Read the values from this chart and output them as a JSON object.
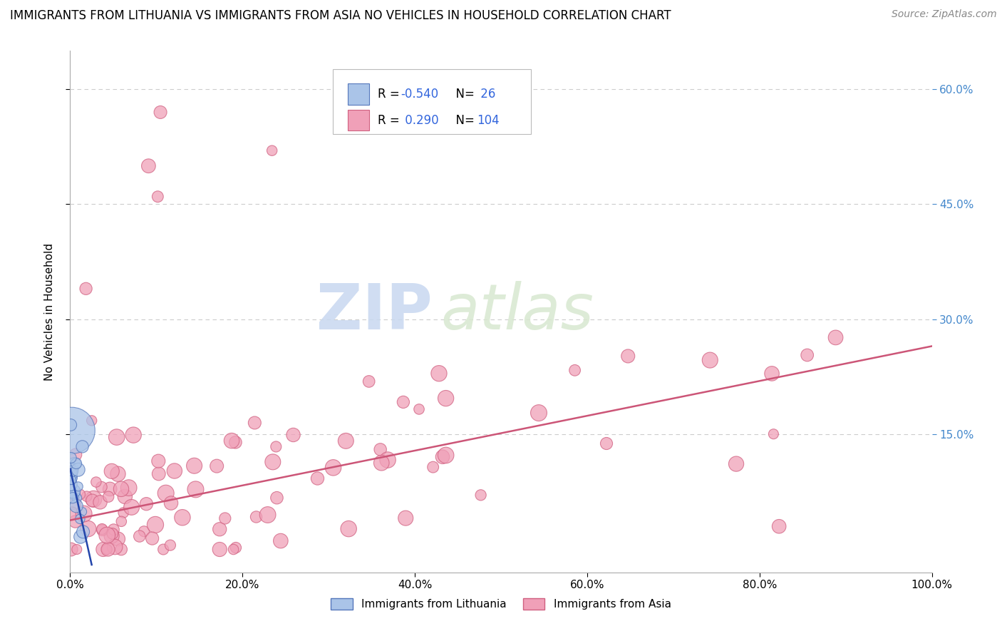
{
  "title": "IMMIGRANTS FROM LITHUANIA VS IMMIGRANTS FROM ASIA NO VEHICLES IN HOUSEHOLD CORRELATION CHART",
  "source": "Source: ZipAtlas.com",
  "ylabel": "No Vehicles in Household",
  "legend_label_1": "Immigrants from Lithuania",
  "legend_label_2": "Immigrants from Asia",
  "r1": -0.54,
  "n1": 26,
  "r2": 0.29,
  "n2": 104,
  "color_blue_face": "#aac4e8",
  "color_blue_edge": "#5577bb",
  "color_pink_face": "#f0a0b8",
  "color_pink_edge": "#d06080",
  "color_line_pink": "#cc5577",
  "color_line_blue": "#2244aa",
  "watermark_zip": "ZIP",
  "watermark_atlas": "atlas",
  "xlim": [
    0.0,
    1.0
  ],
  "ylim": [
    -0.03,
    0.65
  ],
  "ytick_vals": [
    0.15,
    0.3,
    0.45,
    0.6
  ],
  "ytick_labels": [
    "15.0%",
    "30.0%",
    "45.0%",
    "60.0%"
  ],
  "xtick_vals": [
    0.0,
    0.2,
    0.4,
    0.6,
    0.8,
    1.0
  ],
  "xtick_labels": [
    "0.0%",
    "20.0%",
    "40.0%",
    "60.0%",
    "80.0%",
    "100.0%"
  ],
  "background_color": "#ffffff",
  "grid_color": "#cccccc",
  "title_fontsize": 12,
  "source_fontsize": 10,
  "tick_fontsize": 11,
  "ylabel_fontsize": 11,
  "pink_trend_x": [
    0.0,
    1.0
  ],
  "pink_trend_y": [
    0.038,
    0.265
  ],
  "blue_trend_x": [
    0.0,
    0.025
  ],
  "blue_trend_y": [
    0.105,
    -0.02
  ]
}
